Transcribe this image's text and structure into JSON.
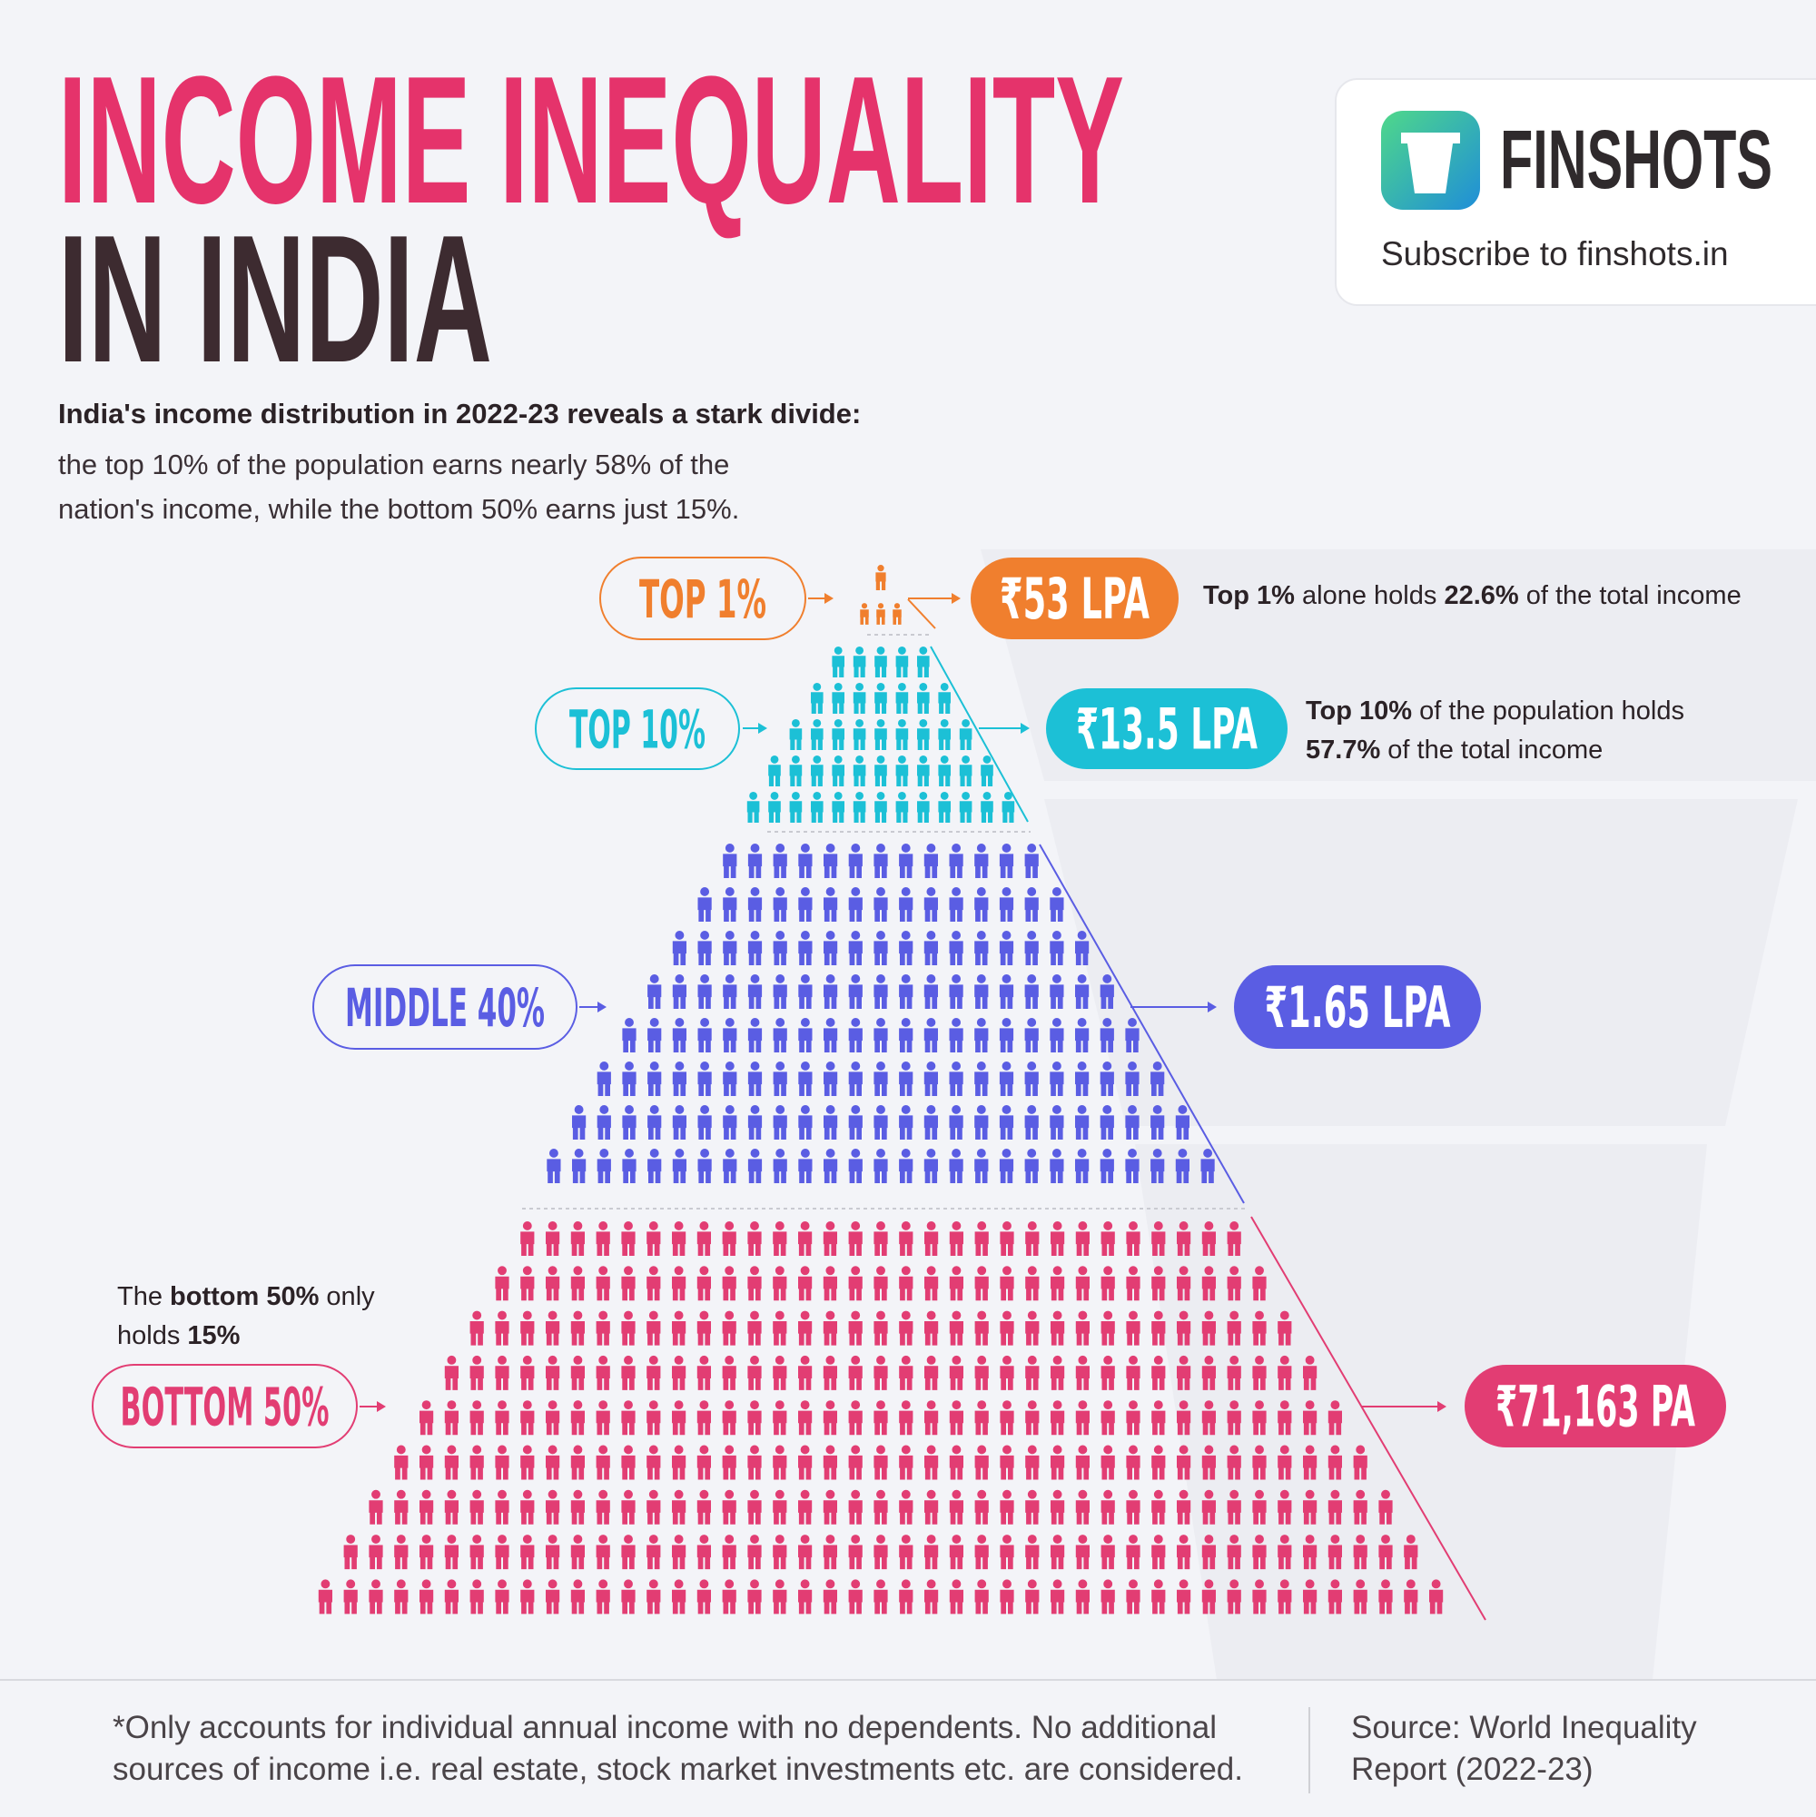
{
  "header": {
    "title_line1": "INCOME INEQUALITY",
    "title_line2": "IN INDIA",
    "intro_bold": "India's income distribution in 2022-23 reveals a stark divide:",
    "intro": "the top 10% of the population earns nearly 58% of the nation's income, while the bottom 50% earns just 15%."
  },
  "brand": {
    "name": "FINSHOTS",
    "tagline": "Subscribe to finshots.in"
  },
  "tiers": [
    {
      "label": "TOP 1%",
      "income": "₹53 LPA",
      "color": "#f07f2e",
      "note": [
        "Top 1%",
        " alone holds ",
        "22.6%",
        " of the total income"
      ]
    },
    {
      "label": "TOP 10%",
      "income": "₹13.5 LPA",
      "color": "#1cc0d6",
      "note": [
        "Top 10%",
        " of the population holds ",
        "57.7%",
        " of the total income"
      ]
    },
    {
      "label": "MIDDLE 40%",
      "income": "₹1.65 LPA",
      "color": "#5a5de3"
    },
    {
      "label": "BOTTOM 50%",
      "income": "₹71,163 PA",
      "color": "#e23d73"
    }
  ],
  "bottom_note": [
    "The ",
    "bottom 50%",
    " only holds ",
    "15%"
  ],
  "footer": {
    "disclaimer": "*Only accounts for individual annual income with no dependents. No additional sources of income i.e. real estate, stock market investments etc. are considered.",
    "source": "Source: World Inequality Report (2022-23)"
  }
}
